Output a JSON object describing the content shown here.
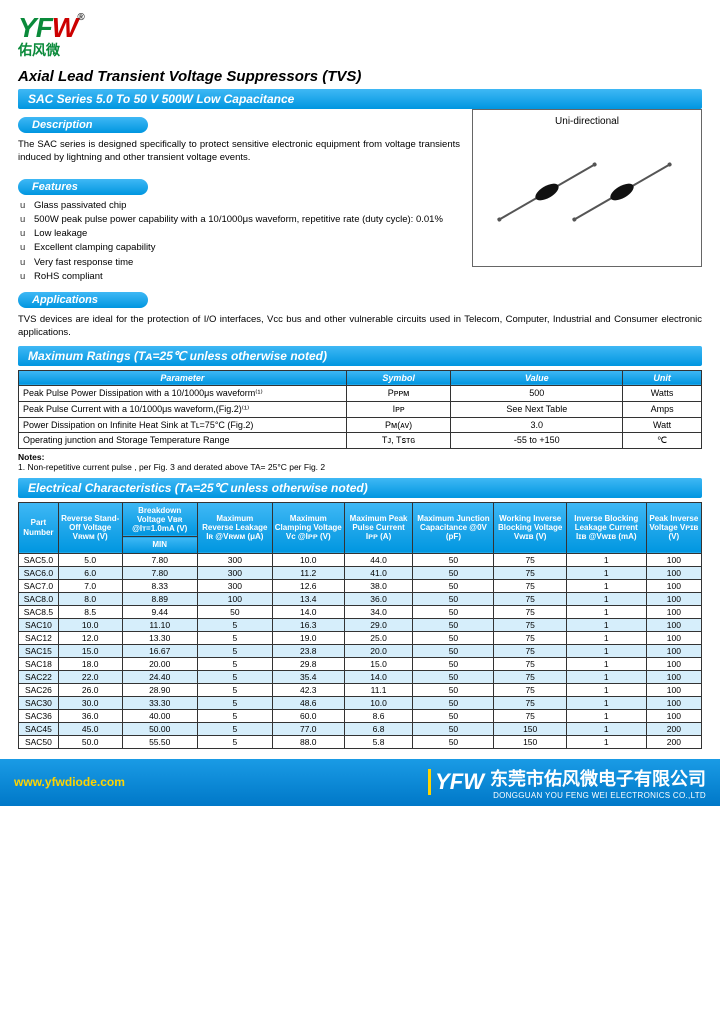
{
  "logo": {
    "text_y": "Y",
    "text_f": "F",
    "text_w": "W",
    "sub": "佑风微",
    "reg": "®"
  },
  "title": "Axial Lead Transient Voltage Suppressors (TVS)",
  "series_bar": "SAC Series     5.0 To 50 V     500W     Low Capacitance",
  "sections": {
    "description": {
      "label": "Description",
      "text": "The SAC series is designed specifically to protect sensitive electronic equipment from voltage transients induced by lightning and other transient voltage events."
    },
    "features": {
      "label": "Features",
      "items": [
        "Glass passivated chip",
        "500W peak pulse power capability with a 10/1000μs waveform, repetitive rate (duty cycle): 0.01%",
        "Low leakage",
        "Excellent clamping capability",
        "Very fast response time",
        "RoHS compliant"
      ]
    },
    "applications": {
      "label": "Applications",
      "text": "TVS devices are ideal for the protection of I/O interfaces, Vcc bus and other vulnerable circuits used in Telecom, Computer, Industrial and Consumer electronic applications."
    }
  },
  "image_caption": "Uni-directional",
  "ratings": {
    "heading": "Maximum Ratings    (Tᴀ=25℃  unless otherwise noted)",
    "headers": [
      "Parameter",
      "Symbol",
      "Value",
      "Unit"
    ],
    "rows": [
      [
        "Peak Pulse Power Dissipation with a 10/1000μs waveform⁽¹⁾",
        "Pᴘᴘᴍ",
        "500",
        "Watts"
      ],
      [
        "Peak Pulse Current with a 10/1000μs waveform,(Fig.2)⁽¹⁾",
        "Iᴘᴘ",
        "See Next Table",
        "Amps"
      ],
      [
        "Power Dissipation on Infinite Heat Sink at Tʟ=75°C (Fig.2)",
        "Pᴍ(ᴀᴠ)",
        "3.0",
        "Watt"
      ],
      [
        "Operating junction and Storage Temperature Range",
        "Tᴊ, Tꜱᴛɢ",
        "-55 to +150",
        "℃"
      ]
    ],
    "notes_label": "Notes:",
    "notes_text": "1. Non-repetitive current pulse , per Fig. 3 and derated above TA= 25°C per Fig. 2"
  },
  "elec": {
    "heading": "Electrical Characteristics    (Tᴀ=25℃  unless otherwise noted)",
    "headers": [
      "Part Number",
      "Reverse Stand-Off Voltage Vʀᴡᴍ (V)",
      "Breakdown Voltage Vʙʀ @Iᴛ=1.0mA (V)",
      "Maximum Reverse Leakage Iʀ @Vʀᴡᴍ (μA)",
      "Maximum Clamping Voltage Vᴄ @Iᴘᴘ (V)",
      "Maximum Peak Pulse Current Iᴘᴘ (A)",
      "Maximum Junction Capacitance @0V (pF)",
      "Working Inverse Blocking Voltage Vᴡɪʙ (V)",
      "Inverse Blocking Leakage Current Iɪʙ @Vᴡɪʙ (mA)",
      "Peak Inverse Voltage Vᴘɪʙ (V)"
    ],
    "sub_min": "MIN",
    "rows": [
      [
        "SAC5.0",
        "5.0",
        "7.80",
        "300",
        "10.0",
        "44.0",
        "50",
        "75",
        "1",
        "100"
      ],
      [
        "SAC6.0",
        "6.0",
        "7.80",
        "300",
        "11.2",
        "41.0",
        "50",
        "75",
        "1",
        "100"
      ],
      [
        "SAC7.0",
        "7.0",
        "8.33",
        "300",
        "12.6",
        "38.0",
        "50",
        "75",
        "1",
        "100"
      ],
      [
        "SAC8.0",
        "8.0",
        "8.89",
        "100",
        "13.4",
        "36.0",
        "50",
        "75",
        "1",
        "100"
      ],
      [
        "SAC8.5",
        "8.5",
        "9.44",
        "50",
        "14.0",
        "34.0",
        "50",
        "75",
        "1",
        "100"
      ],
      [
        "SAC10",
        "10.0",
        "11.10",
        "5",
        "16.3",
        "29.0",
        "50",
        "75",
        "1",
        "100"
      ],
      [
        "SAC12",
        "12.0",
        "13.30",
        "5",
        "19.0",
        "25.0",
        "50",
        "75",
        "1",
        "100"
      ],
      [
        "SAC15",
        "15.0",
        "16.67",
        "5",
        "23.8",
        "20.0",
        "50",
        "75",
        "1",
        "100"
      ],
      [
        "SAC18",
        "18.0",
        "20.00",
        "5",
        "29.8",
        "15.0",
        "50",
        "75",
        "1",
        "100"
      ],
      [
        "SAC22",
        "22.0",
        "24.40",
        "5",
        "35.4",
        "14.0",
        "50",
        "75",
        "1",
        "100"
      ],
      [
        "SAC26",
        "26.0",
        "28.90",
        "5",
        "42.3",
        "11.1",
        "50",
        "75",
        "1",
        "100"
      ],
      [
        "SAC30",
        "30.0",
        "33.30",
        "5",
        "48.6",
        "10.0",
        "50",
        "75",
        "1",
        "100"
      ],
      [
        "SAC36",
        "36.0",
        "40.00",
        "5",
        "60.0",
        "8.6",
        "50",
        "75",
        "1",
        "100"
      ],
      [
        "SAC45",
        "45.0",
        "50.00",
        "5",
        "77.0",
        "6.8",
        "50",
        "150",
        "1",
        "200"
      ],
      [
        "SAC50",
        "50.0",
        "55.50",
        "5",
        "88.0",
        "5.8",
        "50",
        "150",
        "1",
        "200"
      ]
    ]
  },
  "footer": {
    "site": "www.yfwdiode.com",
    "cn": "东莞市佑风微电子有限公司",
    "en": "DONGGUAN YOU FENG WEI ELECTRONICS CO.,LTD"
  },
  "colors": {
    "blue1": "#3fb8f5",
    "blue2": "#0096e0",
    "alt_row": "#d6eefb",
    "green": "#0a8a3a",
    "red": "#c00",
    "yellow": "#ffd400"
  }
}
